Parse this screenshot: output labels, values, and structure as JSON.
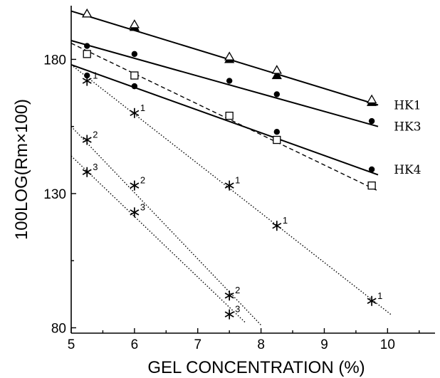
{
  "chart_data": {
    "type": "scatter",
    "title": "",
    "xlabel": "GEL CONCENTRATION (%)",
    "ylabel": "100LOG(Rm×100)",
    "xlim": [
      5,
      10.75
    ],
    "ylim": [
      78,
      200
    ],
    "x_ticks": [
      "5",
      "6",
      "7",
      "8",
      "9",
      "10"
    ],
    "y_ticks": [
      "80",
      "130",
      "180"
    ],
    "grid": false,
    "series": [
      {
        "name": "HK1",
        "marker": "triangle",
        "line": "solid",
        "x": [
          5.25,
          6.0,
          7.5,
          8.25,
          9.75
        ],
        "y": [
          197,
          192,
          180,
          174,
          164
        ],
        "fit": [
          [
            5.0,
            198
          ],
          [
            9.85,
            163
          ]
        ]
      },
      {
        "name": "HK3",
        "marker": "circle",
        "line": "solid",
        "x": [
          5.25,
          6.0,
          7.5,
          8.25,
          9.75
        ],
        "y": [
          185,
          182,
          172,
          167,
          157
        ],
        "fit": [
          [
            5.0,
            187
          ],
          [
            9.85,
            155
          ]
        ]
      },
      {
        "name": "HK4",
        "marker": "circle",
        "line": "solid",
        "x": [
          5.25,
          6.0,
          7.5,
          8.25,
          9.75
        ],
        "y": [
          174,
          170,
          159,
          153,
          139
        ],
        "fit": [
          [
            5.0,
            178
          ],
          [
            9.85,
            137
          ]
        ]
      },
      {
        "name": "",
        "marker": "triangle-open",
        "line": "dashed",
        "x": [
          5.25,
          6.0,
          7.5,
          8.25,
          9.75
        ],
        "y": [
          197,
          193,
          181,
          176,
          165
        ],
        "fit": [
          [
            5.0,
            198
          ],
          [
            9.85,
            163
          ]
        ]
      },
      {
        "name": "",
        "marker": "square-open",
        "line": "dashed",
        "x": [
          5.25,
          6.0,
          7.5,
          8.25,
          9.75
        ],
        "y": [
          182,
          174,
          159,
          150,
          133
        ],
        "fit": [
          [
            5.0,
            186
          ],
          [
            9.85,
            131
          ]
        ]
      },
      {
        "name": "",
        "marker": "star",
        "line": "dotted",
        "point_label": "1",
        "x": [
          5.25,
          6.0,
          7.5,
          8.25,
          9.75
        ],
        "y": [
          172,
          160,
          133,
          118,
          90
        ],
        "fit": [
          [
            5.0,
            178
          ],
          [
            10.05,
            85
          ]
        ]
      },
      {
        "name": "",
        "marker": "star",
        "line": "dotted",
        "point_label": "2",
        "x": [
          5.25,
          6.0,
          7.5
        ],
        "y": [
          150,
          133,
          92
        ],
        "fit": [
          [
            5.0,
            155
          ],
          [
            8.0,
            81
          ]
        ]
      },
      {
        "name": "",
        "marker": "star",
        "line": "dotted",
        "point_label": "3",
        "x": [
          5.25,
          6.0,
          7.5
        ],
        "y": [
          138,
          123,
          85
        ],
        "fit": [
          [
            5.0,
            144
          ],
          [
            7.75,
            82
          ]
        ]
      }
    ],
    "series_labels": [
      {
        "text": "HK1",
        "x": 10.1,
        "y": 163
      },
      {
        "text": "HK3",
        "x": 10.1,
        "y": 155
      },
      {
        "text": "HK4",
        "x": 10.1,
        "y": 139
      }
    ]
  }
}
